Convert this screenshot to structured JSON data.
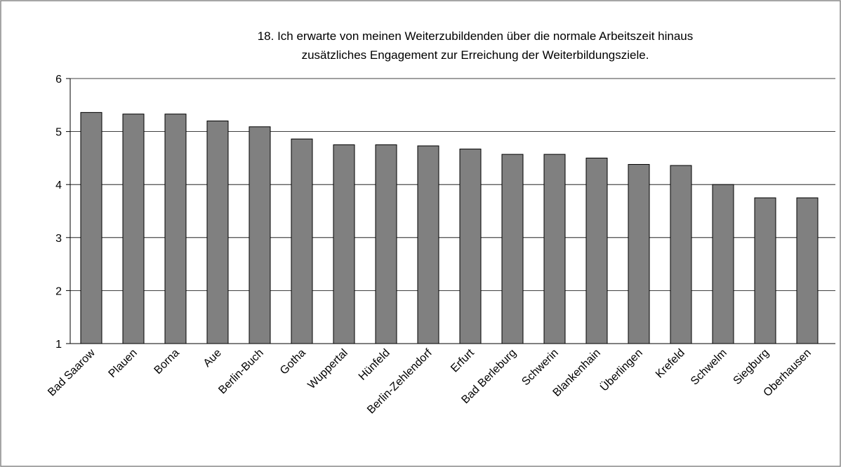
{
  "chart_data": {
    "type": "bar",
    "title": [
      "18. Ich erwarte von meinen Weiterzubildenden über die normale Arbeitszeit hinaus",
      "zusätzliches Engagement zur Erreichung der Weiterbildungsziele."
    ],
    "categories": [
      "Bad Saarow",
      "Plauen",
      "Borna",
      "Aue",
      "Berlin-Buch",
      "Gotha",
      "Wuppertal",
      "Hünfeld",
      "Berlin-Zehlendorf",
      "Erfurt",
      "Bad Berleburg",
      "Schwerin",
      "Blankenhain",
      "Überlingen",
      "Krefeld",
      "Schwelm",
      "Siegburg",
      "Oberhausen"
    ],
    "values": [
      5.36,
      5.33,
      5.33,
      5.2,
      5.09,
      4.86,
      4.75,
      4.75,
      4.73,
      4.67,
      4.57,
      4.57,
      4.5,
      4.38,
      4.36,
      4.0,
      3.75,
      3.75
    ],
    "color": "#808080",
    "ylim": [
      1,
      6
    ],
    "yticks": [
      1,
      2,
      3,
      4,
      5,
      6
    ],
    "grid": true
  }
}
